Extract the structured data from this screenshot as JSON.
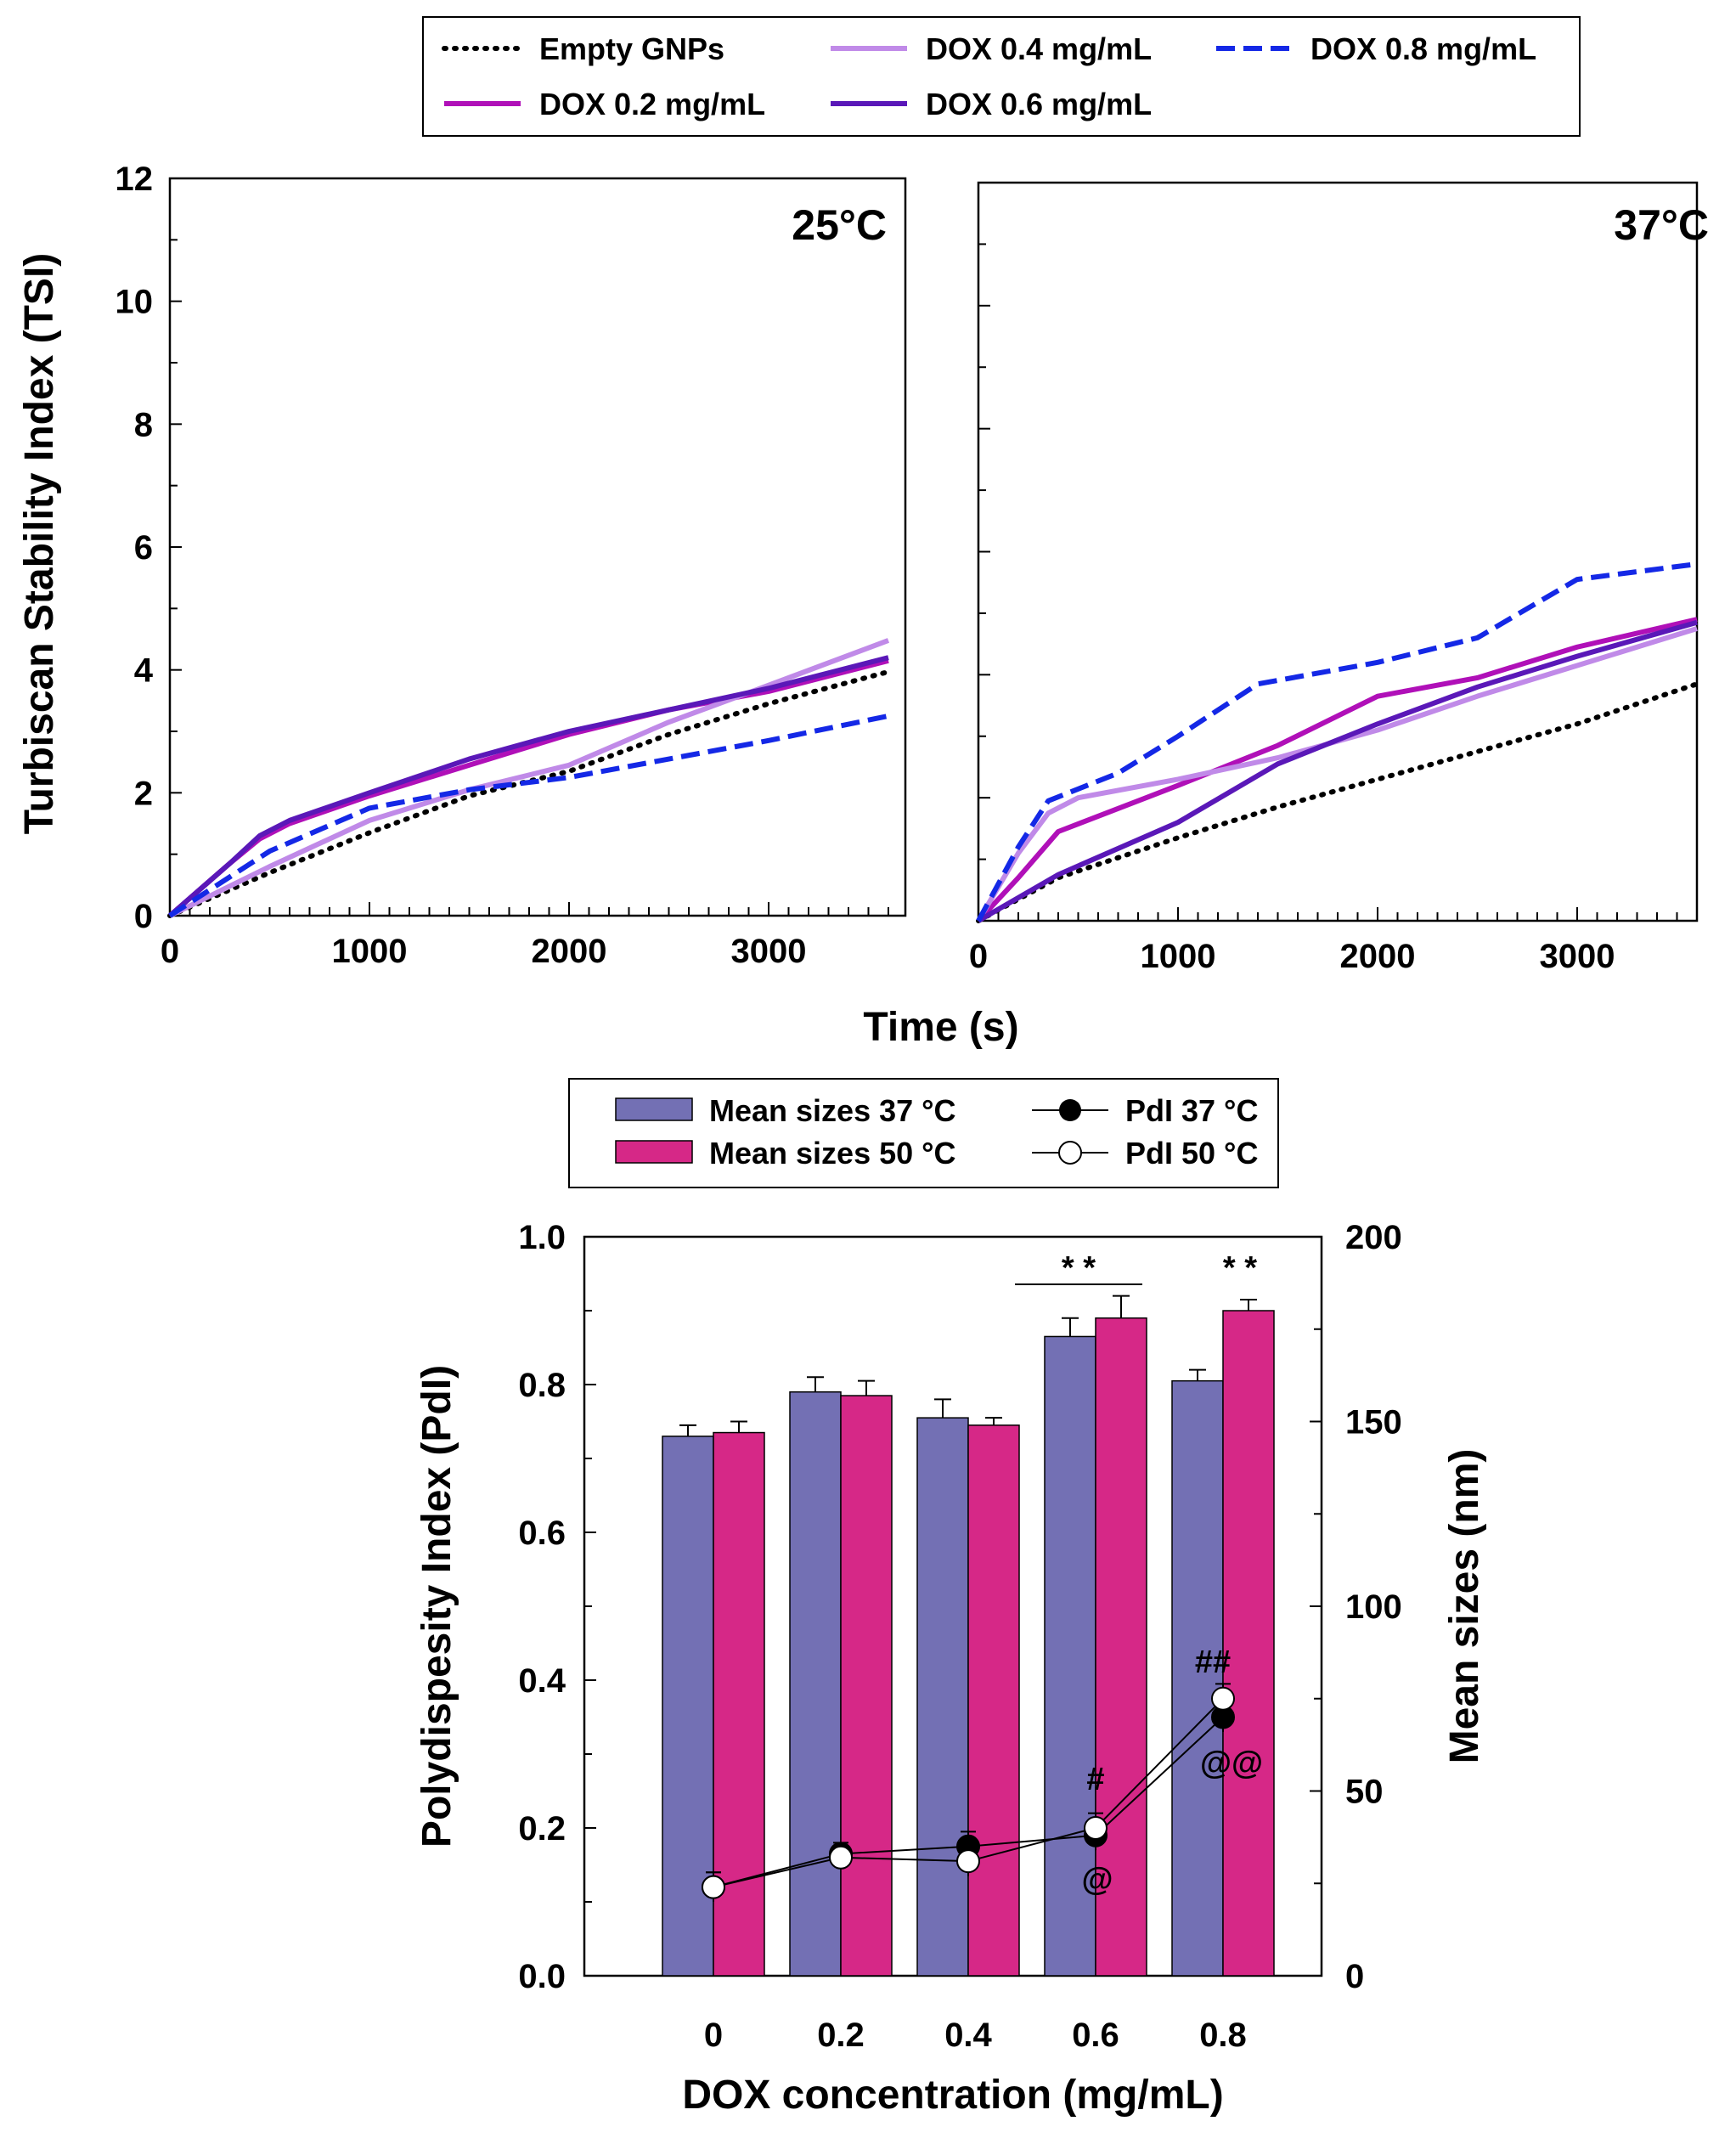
{
  "chart_data": [
    {
      "type": "line",
      "panel": "25°C",
      "title": "25°C",
      "xlabel": "Time (s)",
      "ylabel": "Turbiscan Stability Index (TSI)",
      "xlim": [
        0,
        3600
      ],
      "ylim": [
        0,
        12
      ],
      "xticks": [
        "0",
        "1000",
        "2000",
        "3000"
      ],
      "yticks": [
        "0",
        "2",
        "4",
        "6",
        "8",
        "10",
        "12"
      ],
      "series": [
        {
          "name": "Empty GNPs",
          "color": "#000000",
          "style": "dotted",
          "x": [
            0,
            500,
            1000,
            1500,
            2000,
            2500,
            3000,
            3600
          ],
          "y": [
            0,
            0.7,
            1.35,
            1.95,
            2.35,
            2.95,
            3.45,
            3.97
          ]
        },
        {
          "name": "DOX 0.2 mg/mL",
          "color": "#b010b8",
          "style": "solid",
          "x": [
            0,
            300,
            450,
            600,
            1000,
            1500,
            2000,
            2500,
            3000,
            3600
          ],
          "y": [
            0,
            0.85,
            1.25,
            1.5,
            1.95,
            2.45,
            2.95,
            3.35,
            3.65,
            4.15
          ]
        },
        {
          "name": "DOX 0.4 mg/mL",
          "color": "#c08ae8",
          "style": "solid",
          "x": [
            0,
            500,
            1000,
            1500,
            2000,
            2500,
            3000,
            3600
          ],
          "y": [
            0,
            0.8,
            1.55,
            2.05,
            2.45,
            3.15,
            3.75,
            4.48
          ]
        },
        {
          "name": "DOX 0.6 mg/mL",
          "color": "#5a18b8",
          "style": "solid",
          "x": [
            0,
            300,
            450,
            600,
            1000,
            1500,
            2000,
            2500,
            3000,
            3600
          ],
          "y": [
            0,
            0.85,
            1.3,
            1.55,
            2.0,
            2.55,
            3.0,
            3.35,
            3.7,
            4.2
          ]
        },
        {
          "name": "DOX 0.8 mg/mL",
          "color": "#1428e6",
          "style": "dashed",
          "x": [
            0,
            500,
            1000,
            1500,
            2000,
            2500,
            3000,
            3600
          ],
          "y": [
            0,
            1.05,
            1.75,
            2.05,
            2.25,
            2.55,
            2.85,
            3.25
          ]
        }
      ]
    },
    {
      "type": "line",
      "panel": "37°C",
      "title": "37°C",
      "xlabel": "Time (s)",
      "ylabel": "Turbiscan Stability Index (TSI)",
      "xlim": [
        0,
        3600
      ],
      "ylim": [
        0,
        12
      ],
      "xticks": [
        "0",
        "1000",
        "2000",
        "3000"
      ],
      "series": [
        {
          "name": "Empty GNPs",
          "color": "#000000",
          "style": "dotted",
          "x": [
            0,
            400,
            1000,
            1500,
            2000,
            2500,
            3000,
            3600
          ],
          "y": [
            0,
            0.7,
            1.35,
            1.85,
            2.3,
            2.75,
            3.2,
            3.85
          ]
        },
        {
          "name": "DOX 0.2 mg/mL",
          "color": "#b010b8",
          "style": "solid",
          "x": [
            0,
            200,
            400,
            800,
            1000,
            1500,
            2000,
            2500,
            3000,
            3600
          ],
          "y": [
            0,
            0.7,
            1.45,
            1.95,
            2.2,
            2.85,
            3.65,
            3.95,
            4.45,
            4.9
          ]
        },
        {
          "name": "DOX 0.4 mg/mL",
          "color": "#c08ae8",
          "style": "solid",
          "x": [
            0,
            200,
            350,
            500,
            1000,
            1500,
            2000,
            2500,
            3000,
            3600
          ],
          "y": [
            0,
            1.1,
            1.75,
            2.0,
            2.3,
            2.65,
            3.1,
            3.65,
            4.15,
            4.75
          ]
        },
        {
          "name": "DOX 0.6 mg/mL",
          "color": "#5a18b8",
          "style": "solid",
          "x": [
            0,
            400,
            1000,
            1500,
            2000,
            2500,
            3000,
            3600
          ],
          "y": [
            0,
            0.75,
            1.6,
            2.55,
            3.2,
            3.8,
            4.3,
            4.85
          ]
        },
        {
          "name": "DOX 0.8 mg/mL",
          "color": "#1428e6",
          "style": "dashed",
          "x": [
            0,
            200,
            350,
            700,
            1000,
            1400,
            2000,
            2500,
            3000,
            3600
          ],
          "y": [
            0,
            1.2,
            1.95,
            2.4,
            3.0,
            3.85,
            4.2,
            4.6,
            5.55,
            5.8
          ]
        }
      ]
    },
    {
      "type": "bar",
      "title": "",
      "xlabel": "DOX concentration (mg/mL)",
      "ylabel": "Polydispesity Index (PdI)",
      "y2label": "Mean sizes (nm)",
      "categories": [
        "0",
        "0.2",
        "0.4",
        "0.6",
        "0.8"
      ],
      "ylim": [
        0,
        1.0
      ],
      "y2lim": [
        0,
        200
      ],
      "yticks": [
        "0.0",
        "0.2",
        "0.4",
        "0.6",
        "0.8",
        "1.0"
      ],
      "y2ticks": [
        "0",
        "50",
        "100",
        "150",
        "200"
      ],
      "bar_series": [
        {
          "name": "Mean sizes 37 °C",
          "color": "#7370b4",
          "values": [
            146,
            158,
            151,
            173,
            161
          ],
          "errors": [
            3,
            4,
            5,
            5,
            3
          ]
        },
        {
          "name": "Mean sizes 50 °C",
          "color": "#d62887",
          "values": [
            147,
            157,
            149,
            178,
            180
          ],
          "errors": [
            3,
            4,
            2,
            6,
            3
          ]
        }
      ],
      "line_series": [
        {
          "name": "PdI 37 °C",
          "marker": "filled-circle",
          "values": [
            0.12,
            0.165,
            0.175,
            0.19,
            0.35
          ],
          "errors": [
            0.02,
            0.015,
            0.02,
            0.02,
            0.02
          ]
        },
        {
          "name": "PdI 50 °C",
          "marker": "open-circle",
          "values": [
            0.12,
            0.16,
            0.155,
            0.2,
            0.375
          ],
          "errors": [
            0.02,
            0.015,
            0.02,
            0.02,
            0.02
          ]
        }
      ],
      "annotations": [
        {
          "category": "0.6",
          "label": "* *",
          "meaning": "bracket over bars"
        },
        {
          "category": "0.8",
          "label": "* *",
          "meaning": "over bars"
        },
        {
          "category": "0.6",
          "label": "#"
        },
        {
          "category": "0.6",
          "label": "@"
        },
        {
          "category": "0.8",
          "label": "##"
        },
        {
          "category": "0.8",
          "label": "@@"
        }
      ]
    }
  ],
  "legend_top": [
    "Empty GNPs",
    "DOX 0.4 mg/mL",
    "DOX 0.8 mg/mL",
    "DOX 0.2 mg/mL",
    "DOX 0.6 mg/mL"
  ],
  "legend_bottom": [
    "Mean sizes 37 °C",
    "PdI 37 °C",
    "Mean sizes 50 °C",
    "PdI 50 °C"
  ]
}
